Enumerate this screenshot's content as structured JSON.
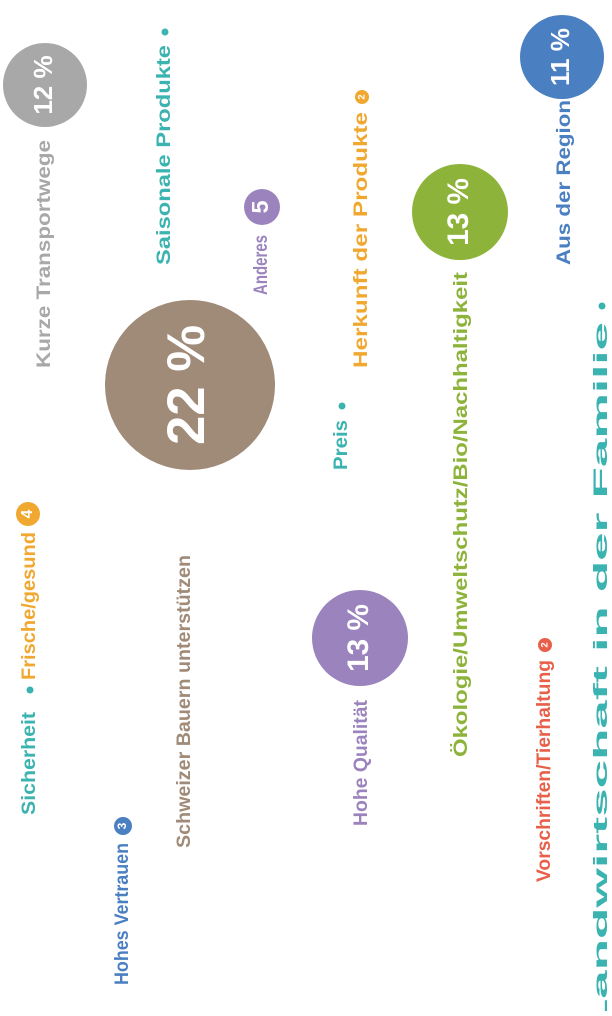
{
  "chart_data": {
    "type": "bubble",
    "categories": [
      "Sicherheit",
      "Hohes Vertrauen",
      "Frische/gesund",
      "Schweizer Bauern unterstützen",
      "Kurze Transportwege",
      "Saisonale Produkte",
      "Anderes",
      "Hohe Qualität",
      "Preis",
      "Herkunft der Produkte",
      "Ökologie/Umweltschutz/Bio/Nachhaltigkeit",
      "Vorschriften/Tierhaltung",
      "Landwirtschaft in der Familie",
      "Aus der Region"
    ],
    "values": [
      null,
      3,
      4,
      22,
      12,
      null,
      5,
      13,
      null,
      2,
      13,
      2,
      null,
      11
    ],
    "value_labels": [
      null,
      "3",
      "4",
      "22 %",
      "12 %",
      null,
      "5",
      "13 %",
      null,
      "2",
      "13 %",
      "2",
      null,
      "11 %"
    ],
    "colors": [
      "#3bb3b0",
      "#4a7fc1",
      "#f0a830",
      "#a08a78",
      "#a8a8a8",
      "#3bb3b0",
      "#9b84bd",
      "#9b84bd",
      "#3bb3b0",
      "#f0a830",
      "#8db33a",
      "#e8604a",
      "#3bb3b0",
      "#4a7fc1"
    ]
  }
}
